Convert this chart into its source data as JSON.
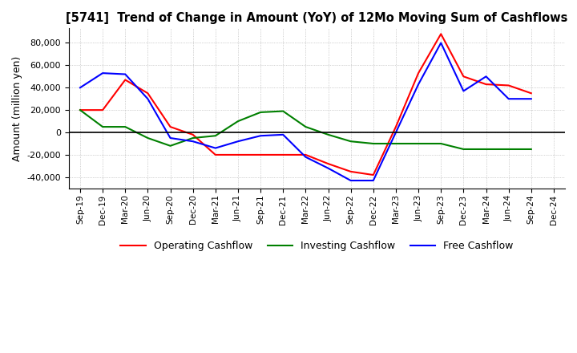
{
  "title": "[5741]  Trend of Change in Amount (YoY) of 12Mo Moving Sum of Cashflows",
  "ylabel": "Amount (million yen)",
  "ylim": [
    -50000,
    93000
  ],
  "yticks": [
    -40000,
    -20000,
    0,
    20000,
    40000,
    60000,
    80000
  ],
  "x_labels": [
    "Sep-19",
    "Dec-19",
    "Mar-20",
    "Jun-20",
    "Sep-20",
    "Dec-20",
    "Mar-21",
    "Jun-21",
    "Sep-21",
    "Dec-21",
    "Mar-22",
    "Jun-22",
    "Sep-22",
    "Dec-22",
    "Mar-23",
    "Jun-23",
    "Sep-23",
    "Dec-23",
    "Mar-24",
    "Jun-24",
    "Sep-24",
    "Dec-24"
  ],
  "operating": [
    20000,
    20000,
    47000,
    35000,
    5000,
    -2000,
    -20000,
    -20000,
    -20000,
    -20000,
    -20000,
    -28000,
    -35000,
    -38000,
    5000,
    53000,
    88000,
    50000,
    43000,
    42000,
    35000,
    null
  ],
  "investing": [
    20000,
    5000,
    5000,
    -5000,
    -12000,
    -5000,
    -3000,
    10000,
    18000,
    19000,
    5000,
    -2000,
    -8000,
    -10000,
    -10000,
    -10000,
    -10000,
    -15000,
    -15000,
    -15000,
    -15000,
    null
  ],
  "free": [
    40000,
    53000,
    52000,
    30000,
    -5000,
    -8000,
    -14000,
    -8000,
    -3000,
    -2000,
    -22000,
    -32000,
    -43000,
    -43000,
    0,
    43000,
    80000,
    37000,
    50000,
    30000,
    30000,
    null
  ],
  "colors": {
    "operating": "#ff0000",
    "investing": "#008000",
    "free": "#0000ff"
  },
  "legend_labels": [
    "Operating Cashflow",
    "Investing Cashflow",
    "Free Cashflow"
  ],
  "background": "#ffffff",
  "grid_color": "#aaaaaa"
}
